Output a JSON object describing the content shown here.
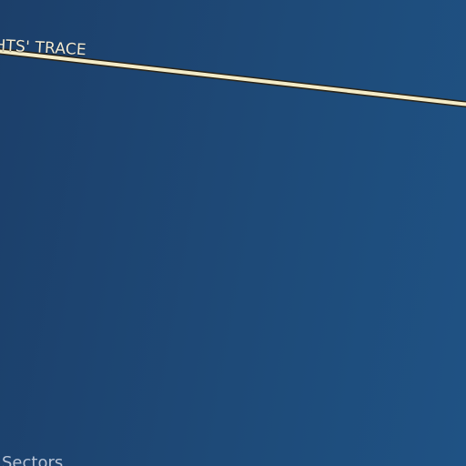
{
  "map": {
    "background_colors": [
      "#1c3f6a",
      "#1e4a78",
      "#1f5284"
    ],
    "road": {
      "label": "HTS' TRACE",
      "color": "#f4ecc8",
      "casing_color": "#2a2418"
    },
    "district": {
      "label": "Sectors",
      "color": "#b8c4d6"
    }
  }
}
